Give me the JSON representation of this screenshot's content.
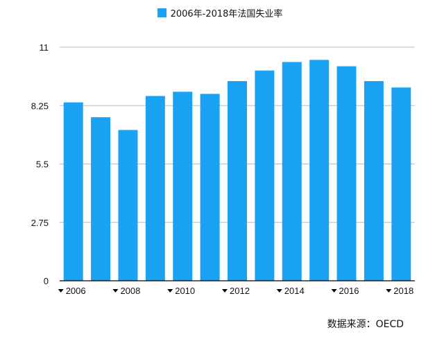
{
  "legend": {
    "label": "2006年-2018年法国失业率",
    "color": "#1aa3f5"
  },
  "source": "数据来源：OECD",
  "chart_data": {
    "type": "bar",
    "categories": [
      "2006",
      "2007",
      "2008",
      "2009",
      "2010",
      "2011",
      "2012",
      "2013",
      "2014",
      "2015",
      "2016",
      "2017",
      "2018"
    ],
    "series": [
      {
        "name": "2006年-2018年法国失业率",
        "color": "#1aa3f5",
        "values": [
          8.4,
          7.7,
          7.1,
          8.7,
          8.9,
          8.8,
          9.4,
          9.9,
          10.3,
          10.4,
          10.1,
          9.4,
          9.1
        ]
      }
    ],
    "ylim": [
      0,
      11
    ],
    "yticks": [
      0,
      2.75,
      5.5,
      8.25,
      11
    ],
    "ytick_labels": [
      "0",
      "2.75",
      "5.5",
      "8.25",
      "11"
    ],
    "xtick_labels": [
      "2006",
      "2008",
      "2010",
      "2012",
      "2014",
      "2016",
      "2018"
    ],
    "grid": true,
    "legend_position": "top-center"
  }
}
